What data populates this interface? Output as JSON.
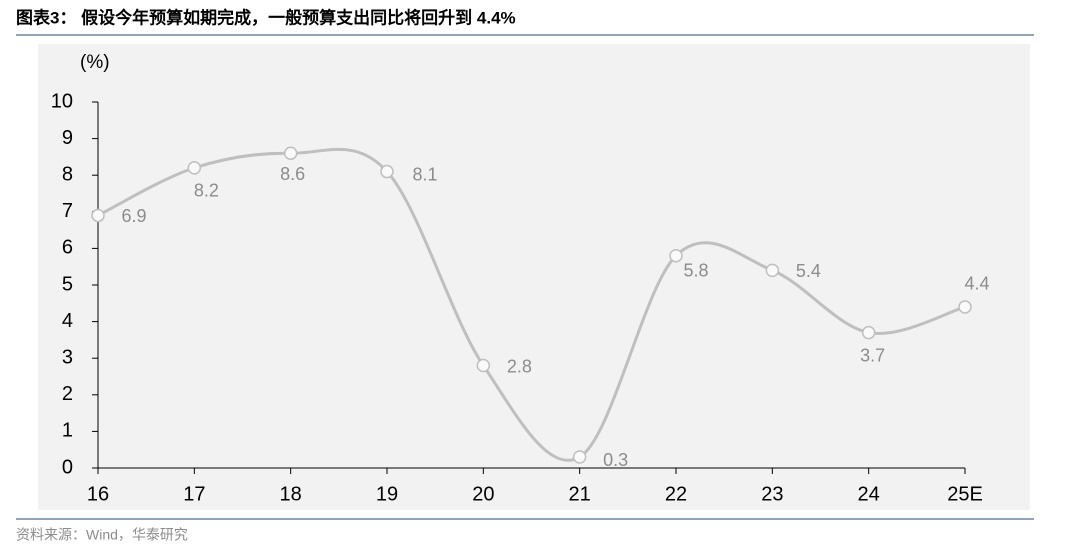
{
  "chart_data": {
    "type": "line",
    "title": "图表3：  假设今年预算如期完成，一般预算支出同比将回升到 4.4%",
    "y_label": "(%)",
    "source": "资料来源：Wind，华泰研究",
    "categories": [
      "16",
      "17",
      "18",
      "19",
      "20",
      "21",
      "22",
      "23",
      "24",
      "25E"
    ],
    "series": [
      {
        "name": "一般预算支出同比",
        "color": "#bfbfbf",
        "values": [
          6.9,
          8.2,
          8.6,
          8.1,
          2.8,
          0.3,
          5.8,
          5.4,
          3.7,
          4.4
        ]
      }
    ],
    "ylim": [
      0,
      10
    ],
    "yticks": [
      0,
      1,
      2,
      3,
      4,
      5,
      6,
      7,
      8,
      9,
      10
    ]
  }
}
